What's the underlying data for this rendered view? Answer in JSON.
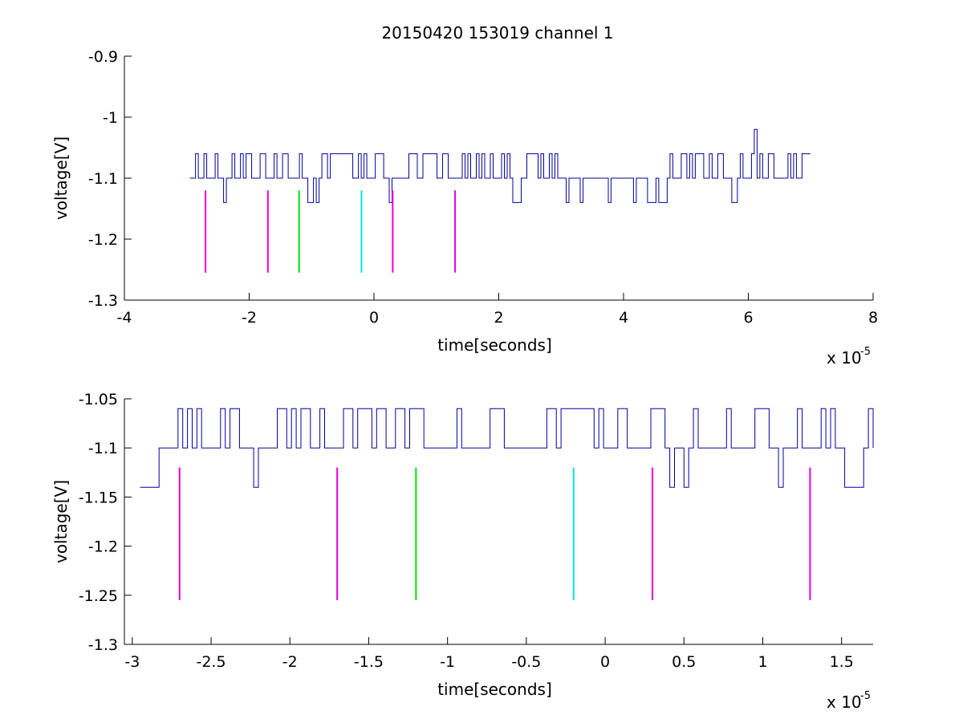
{
  "figure_title": "20150420 153019 channel 1",
  "chart_data": [
    {
      "type": "line",
      "title": "20150420 153019 channel 1",
      "xlabel": "time[seconds]",
      "ylabel": "voltage[V]",
      "x_exponent_label": "x 10",
      "x_exponent_value": "-5",
      "xlim": [
        -4,
        8
      ],
      "ylim": [
        -1.3,
        -0.9
      ],
      "xticks": [
        -4,
        -2,
        0,
        2,
        4,
        6,
        8
      ],
      "xtick_labels": [
        "-4",
        "-2",
        "0",
        "2",
        "4",
        "6",
        "8"
      ],
      "yticks": [
        -1.3,
        -1.2,
        -1.1,
        -1.0,
        -0.9
      ],
      "ytick_labels": [
        "-1.3",
        "-1.2",
        "-1.1",
        "-1",
        "-0.9"
      ],
      "grid": false,
      "signal": {
        "color": "#00009c",
        "x_range": [
          -2.95,
          7.0
        ],
        "levels": [
          -1.06,
          -1.1,
          -1.14
        ],
        "spike": {
          "x": 6.1,
          "y": -1.02
        }
      },
      "markers": [
        {
          "x": -2.7,
          "y_top": -1.12,
          "y_bottom": -1.255,
          "color": "#e600e6"
        },
        {
          "x": -1.7,
          "y_top": -1.12,
          "y_bottom": -1.255,
          "color": "#e600e6"
        },
        {
          "x": -1.2,
          "y_top": -1.12,
          "y_bottom": -1.255,
          "color": "#00e600"
        },
        {
          "x": -0.2,
          "y_top": -1.12,
          "y_bottom": -1.255,
          "color": "#00e6e6"
        },
        {
          "x": 0.3,
          "y_top": -1.12,
          "y_bottom": -1.255,
          "color": "#e600e6"
        },
        {
          "x": 1.3,
          "y_top": -1.12,
          "y_bottom": -1.255,
          "color": "#e600e6"
        }
      ]
    },
    {
      "type": "line",
      "title": "",
      "xlabel": "time[seconds]",
      "ylabel": "voltage[V]",
      "x_exponent_label": "x 10",
      "x_exponent_value": "-5",
      "xlim": [
        -3.05,
        1.7
      ],
      "ylim": [
        -1.3,
        -1.05
      ],
      "xticks": [
        -3,
        -2.5,
        -2,
        -1.5,
        -1,
        -0.5,
        0,
        0.5,
        1,
        1.5
      ],
      "xtick_labels": [
        "-3",
        "-2.5",
        "-2",
        "-1.5",
        "-1",
        "-0.5",
        "0",
        "0.5",
        "1",
        "1.5"
      ],
      "yticks": [
        -1.3,
        -1.25,
        -1.2,
        -1.15,
        -1.1,
        -1.05
      ],
      "ytick_labels": [
        "-1.3",
        "-1.25",
        "-1.2",
        "-1.15",
        "-1.1",
        "-1.05"
      ],
      "grid": false,
      "signal": {
        "color": "#00009c",
        "x_range": [
          -2.95,
          1.7
        ],
        "levels": [
          -1.06,
          -1.1,
          -1.14
        ]
      },
      "markers": [
        {
          "x": -2.7,
          "y_top": -1.12,
          "y_bottom": -1.255,
          "color": "#e600e6"
        },
        {
          "x": -1.7,
          "y_top": -1.12,
          "y_bottom": -1.255,
          "color": "#e600e6"
        },
        {
          "x": -1.2,
          "y_top": -1.12,
          "y_bottom": -1.255,
          "color": "#00e600"
        },
        {
          "x": -0.2,
          "y_top": -1.12,
          "y_bottom": -1.255,
          "color": "#00e6e6"
        },
        {
          "x": 0.3,
          "y_top": -1.12,
          "y_bottom": -1.255,
          "color": "#e600e6"
        },
        {
          "x": 1.3,
          "y_top": -1.12,
          "y_bottom": -1.255,
          "color": "#e600e6"
        }
      ]
    }
  ]
}
